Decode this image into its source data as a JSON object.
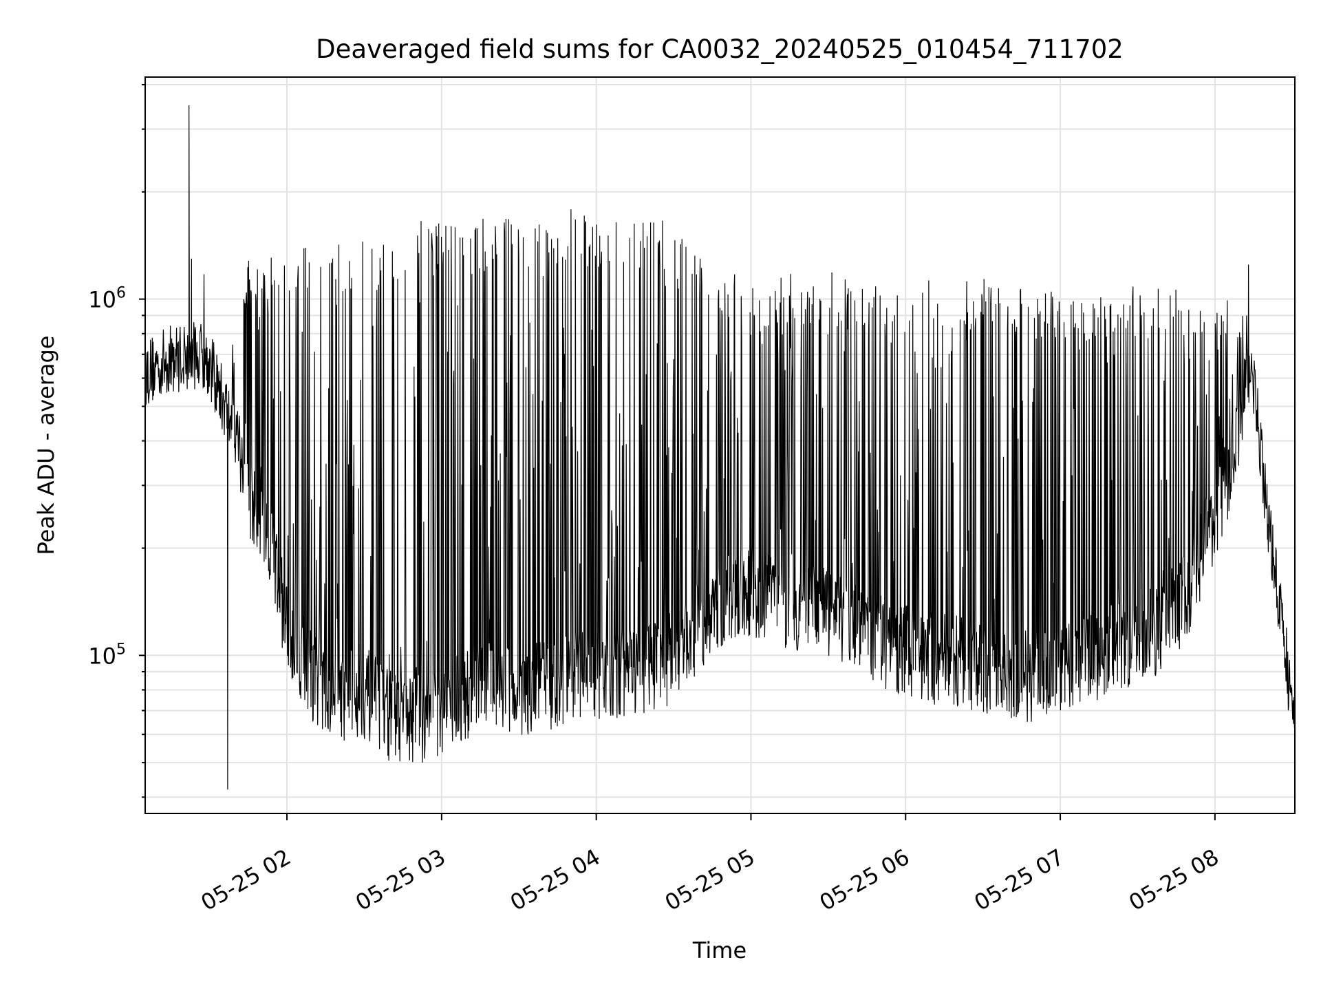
{
  "chart_data": {
    "type": "line",
    "title": "Deaveraged field sums for CA0032_20240525_010454_711702",
    "xlabel": "Time",
    "ylabel": "Peak ADU - average",
    "yscale": "log",
    "ylim": [
      36000,
      4200000
    ],
    "xlim": [
      "2024-05-25 01:05",
      "2024-05-25 08:31"
    ],
    "grid": true,
    "x_ticks": [
      "2024-05-25 02:00",
      "2024-05-25 03:00",
      "2024-05-25 04:00",
      "2024-05-25 05:00",
      "2024-05-25 06:00",
      "2024-05-25 07:00",
      "2024-05-25 08:00"
    ],
    "x_tick_labels": [
      "05-25 02",
      "05-25 03",
      "05-25 04",
      "05-25 05",
      "05-25 06",
      "05-25 07",
      "05-25 08"
    ],
    "y_ticks": [
      100000,
      1000000
    ],
    "y_tick_labels": [
      {
        "base": "10",
        "exp": "5"
      },
      {
        "base": "10",
        "exp": "6"
      }
    ],
    "line_color": "#000000",
    "series": [
      {
        "x": [
          "2024-05-25 01:05",
          "2024-05-25 01:15",
          "2024-05-25 01:25",
          "2024-05-25 01:28",
          "2024-05-25 01:30",
          "2024-05-25 01:40",
          "2024-05-25 01:45",
          "2024-05-25 01:55",
          "2024-05-25 02:00",
          "2024-05-25 02:10",
          "2024-05-25 02:20",
          "2024-05-25 02:30",
          "2024-05-25 02:40",
          "2024-05-25 02:50",
          "2024-05-25 03:00",
          "2024-05-25 03:10",
          "2024-05-25 03:20",
          "2024-05-25 03:30",
          "2024-05-25 03:40",
          "2024-05-25 03:50",
          "2024-05-25 04:00",
          "2024-05-25 04:10",
          "2024-05-25 04:20",
          "2024-05-25 04:30",
          "2024-05-25 04:40",
          "2024-05-25 04:50",
          "2024-05-25 05:00",
          "2024-05-25 05:10",
          "2024-05-25 05:20",
          "2024-05-25 05:30",
          "2024-05-25 05:40",
          "2024-05-25 05:50",
          "2024-05-25 06:00",
          "2024-05-25 06:10",
          "2024-05-25 06:20",
          "2024-05-25 06:30",
          "2024-05-25 06:40",
          "2024-05-25 06:50",
          "2024-05-25 07:00",
          "2024-05-25 07:10",
          "2024-05-25 07:20",
          "2024-05-25 07:30",
          "2024-05-25 07:40",
          "2024-05-25 07:50",
          "2024-05-25 08:00",
          "2024-05-25 08:05",
          "2024-05-25 08:10",
          "2024-05-25 08:14",
          "2024-05-25 08:20",
          "2024-05-25 08:25",
          "2024-05-25 08:30"
        ],
        "base": [
          620000,
          680000,
          700000,
          690000,
          650000,
          420000,
          250000,
          170000,
          110000,
          80000,
          70000,
          72000,
          62000,
          60000,
          65000,
          72000,
          75000,
          72000,
          75000,
          78000,
          80000,
          80000,
          85000,
          90000,
          110000,
          130000,
          140000,
          130000,
          125000,
          120000,
          110000,
          100000,
          95000,
          90000,
          88000,
          85000,
          80000,
          80000,
          85000,
          90000,
          95000,
          100000,
          110000,
          140000,
          230000,
          280000,
          420000,
          700000,
          260000,
          140000,
          70000
        ],
        "peak": [
          820000,
          900000,
          950000,
          1300000,
          900000,
          800000,
          1300000,
          1450000,
          1450000,
          1480000,
          1500000,
          1480000,
          1500000,
          1700000,
          1700000,
          1650000,
          1700000,
          1750000,
          1750000,
          1800000,
          1750000,
          1720000,
          1700000,
          1650000,
          1400000,
          1200000,
          1150000,
          1150000,
          1200000,
          1200000,
          1150000,
          1100000,
          1100000,
          1150000,
          1150000,
          1150000,
          1100000,
          1100000,
          1050000,
          1050000,
          1100000,
          1100000,
          1100000,
          1100000,
          1100000,
          1000000,
          950000,
          1250000,
          380000,
          170000,
          100000
        ],
        "spikes": [
          {
            "x": "2024-05-25 01:22",
            "y": 3500000
          },
          {
            "x": "2024-05-25 01:23",
            "y": 1300000
          },
          {
            "x": "2024-05-25 01:37",
            "y": 42000
          },
          {
            "x": "2024-05-25 08:13",
            "y": 1250000
          }
        ]
      }
    ]
  }
}
